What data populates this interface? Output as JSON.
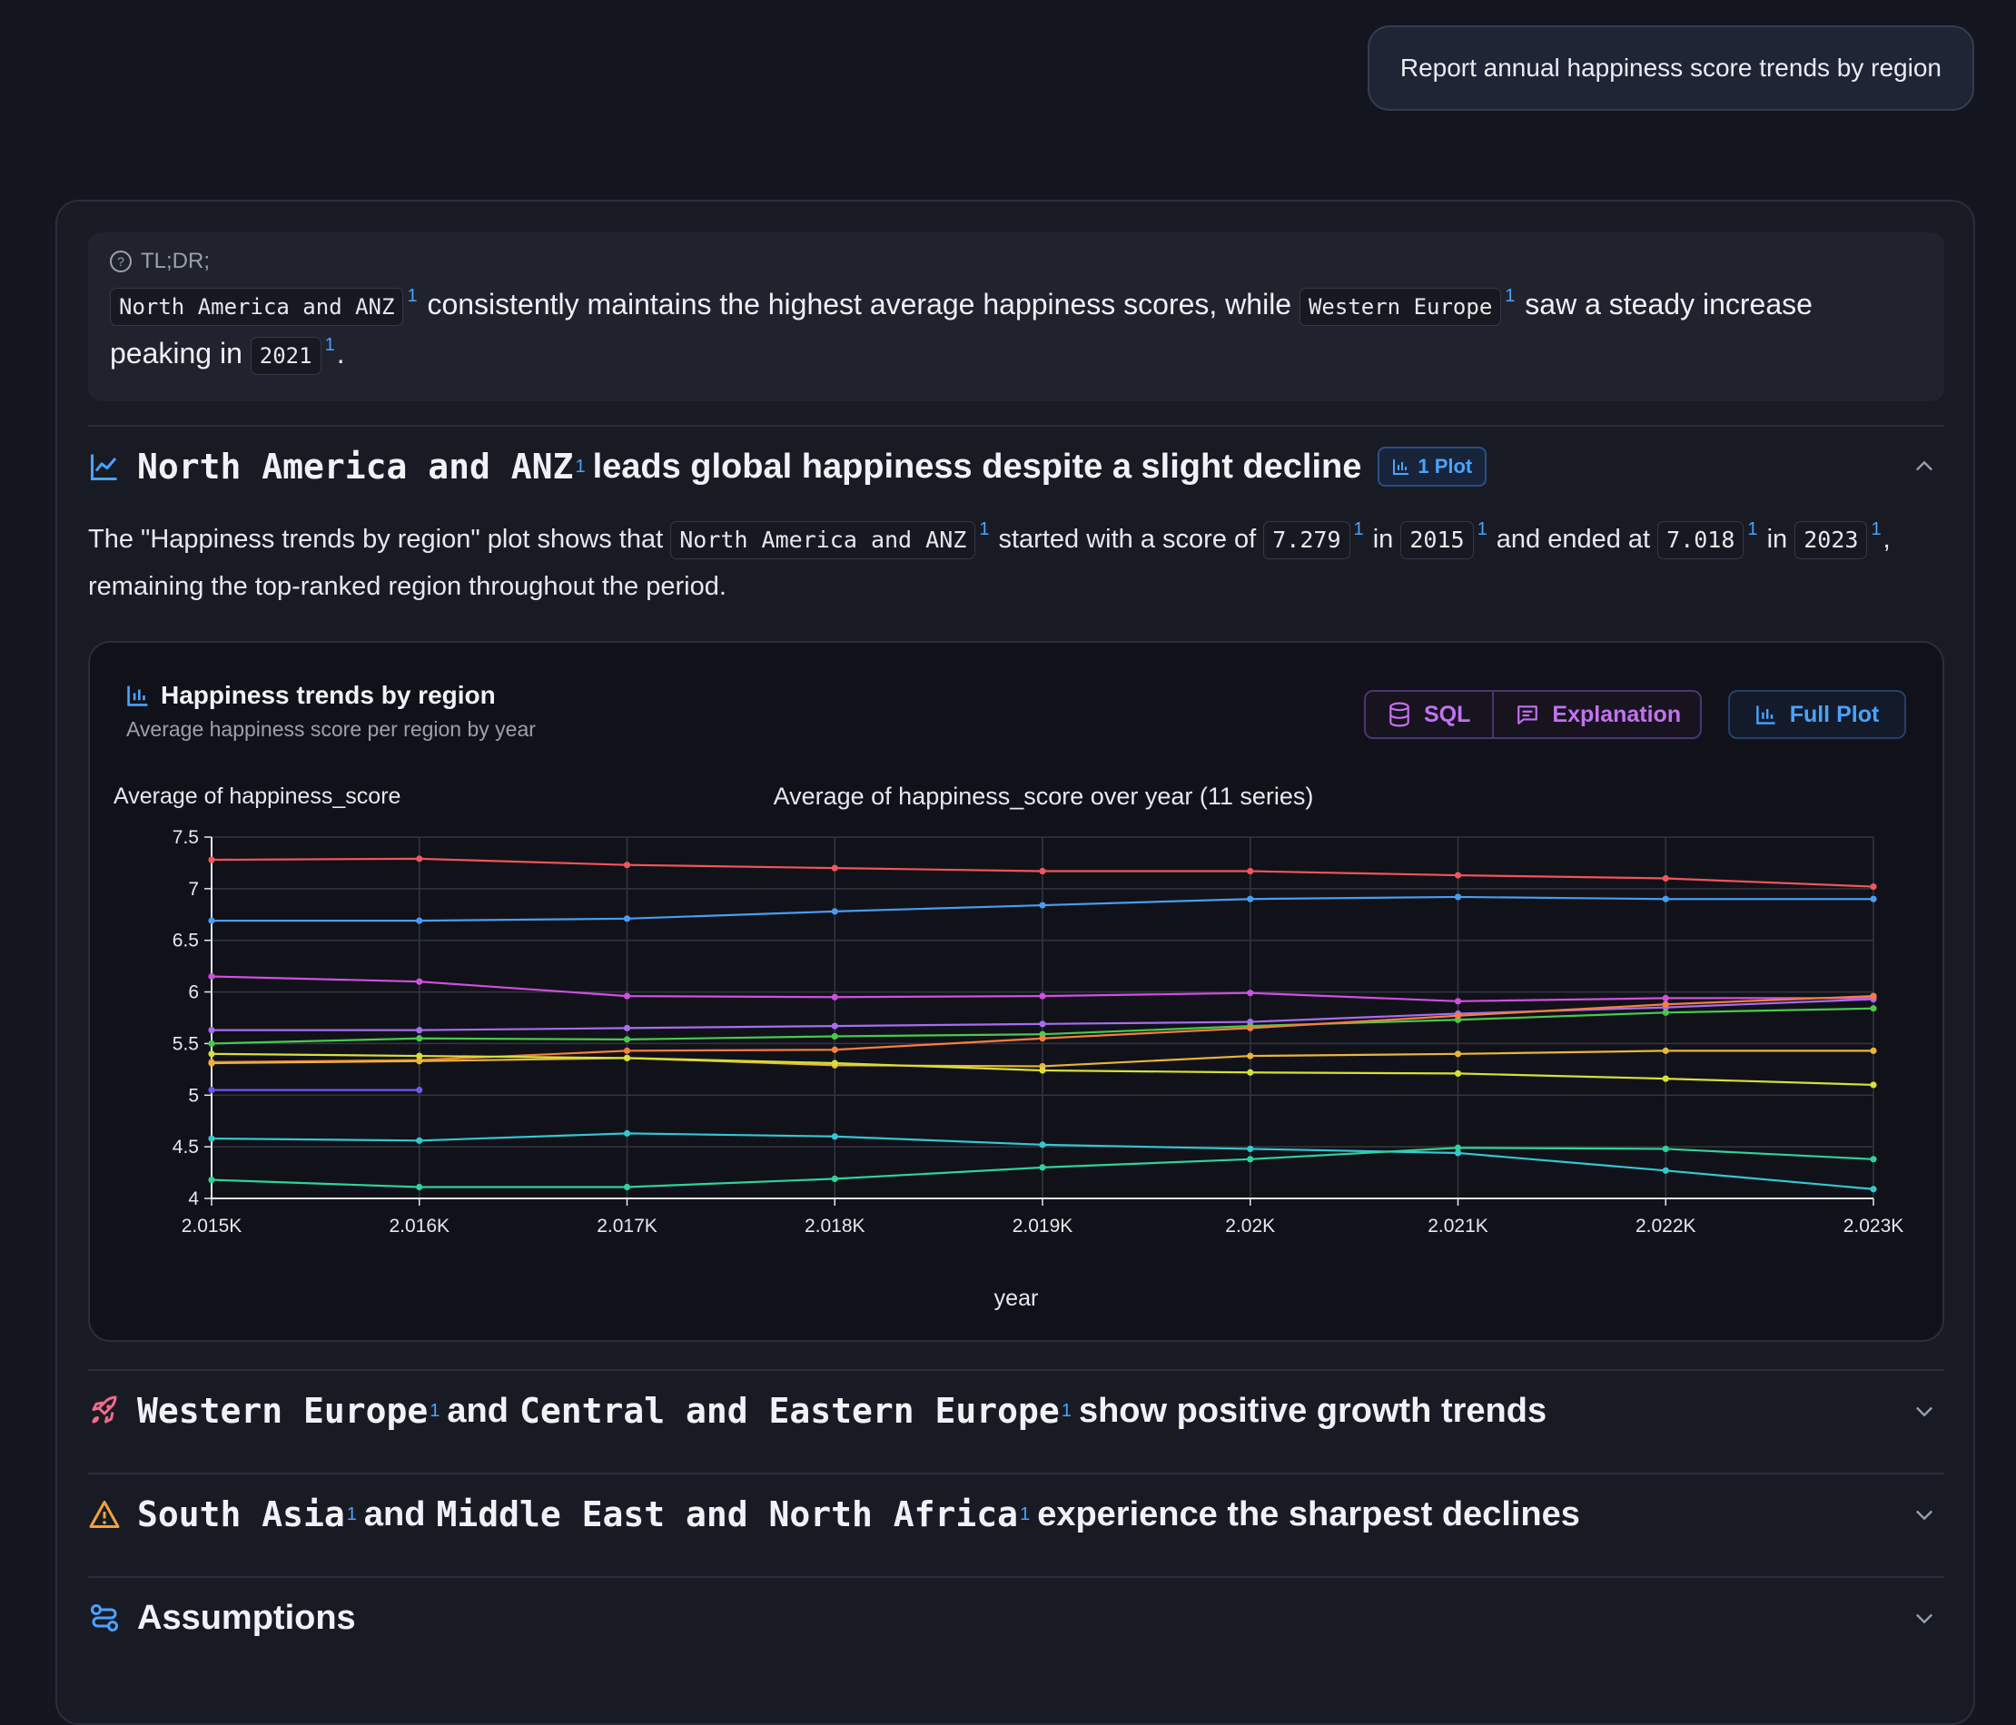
{
  "query": "Report annual happiness score trends by region",
  "tldr": {
    "label": "TL;DR;",
    "chip1": "North America and ANZ",
    "text1": "consistently maintains the highest average happiness scores, while",
    "chip2": "Western Europe",
    "text2": "saw a steady increase",
    "text3": "peaking in",
    "chip3": "2021",
    "text4": ".",
    "ref": "1"
  },
  "section1": {
    "title_chip": "North America and ANZ",
    "title_rest": "leads global happiness despite a slight decline",
    "badge": "1 Plot",
    "para": {
      "t1": "The \"Happiness trends by region\" plot shows that",
      "c1": "North America and ANZ",
      "t2": "started with a score of",
      "c2": "7.279",
      "t3": "in",
      "c3": "2015",
      "t4": "and ended at",
      "c4": "7.018",
      "t5": "in",
      "c5": "2023",
      "t6": ",",
      "t7": "remaining the top-ranked region throughout the period."
    }
  },
  "chart_panel": {
    "title": "Happiness trends by region",
    "subtitle": "Average happiness score per region by year",
    "sql_label": "SQL",
    "explanation_label": "Explanation",
    "full_plot_label": "Full Plot"
  },
  "chart_data": {
    "type": "line",
    "title": "Average of happiness_score over year (11 series)",
    "ylabel": "Average of happiness_score",
    "xlabel": "year",
    "x": [
      2015,
      2016,
      2017,
      2018,
      2019,
      2020,
      2021,
      2022,
      2023
    ],
    "x_tick_labels": [
      "2.015K",
      "2.016K",
      "2.017K",
      "2.018K",
      "2.019K",
      "2.02K",
      "2.021K",
      "2.022K",
      "2.023K"
    ],
    "ylim": [
      4,
      7.5
    ],
    "y_ticks": [
      4,
      4.5,
      5,
      5.5,
      6,
      6.5,
      7,
      7.5
    ],
    "y_tick_labels": [
      "4",
      "4.5",
      "5",
      "5.5",
      "6",
      "6.5",
      "7",
      "7.5"
    ],
    "grid": true,
    "series": [
      {
        "color": "#f2555a",
        "values": [
          7.28,
          7.29,
          7.23,
          7.2,
          7.17,
          7.17,
          7.13,
          7.1,
          7.02
        ]
      },
      {
        "color": "#4a9cf0",
        "values": [
          6.69,
          6.69,
          6.71,
          6.78,
          6.84,
          6.9,
          6.92,
          6.9,
          6.9
        ]
      },
      {
        "color": "#d04fe0",
        "values": [
          6.15,
          6.1,
          5.96,
          5.95,
          5.96,
          5.99,
          5.91,
          5.94,
          5.94
        ]
      },
      {
        "color": "#a56df0",
        "values": [
          5.63,
          5.63,
          5.65,
          5.67,
          5.69,
          5.71,
          5.79,
          5.85,
          5.93
        ]
      },
      {
        "color": "#49c94e",
        "values": [
          5.5,
          5.55,
          5.54,
          5.57,
          5.59,
          5.67,
          5.73,
          5.8,
          5.84
        ]
      },
      {
        "color": "#f57f40",
        "values": [
          5.32,
          5.34,
          5.43,
          5.44,
          5.55,
          5.65,
          5.77,
          5.88,
          5.96
        ]
      },
      {
        "color": "#e8b53c",
        "values": [
          5.31,
          5.33,
          5.36,
          5.29,
          5.28,
          5.38,
          5.4,
          5.43,
          5.43
        ]
      },
      {
        "color": "#d6e038",
        "values": [
          5.4,
          5.38,
          5.36,
          5.31,
          5.24,
          5.22,
          5.21,
          5.16,
          5.1
        ]
      },
      {
        "color": "#6a5af0",
        "values": [
          5.05,
          5.05,
          null,
          null,
          null,
          null,
          null,
          null,
          null
        ]
      },
      {
        "color": "#35c7d0",
        "values": [
          4.58,
          4.56,
          4.63,
          4.6,
          4.52,
          4.48,
          4.44,
          4.27,
          4.09
        ]
      },
      {
        "color": "#2fd39a",
        "values": [
          4.18,
          4.11,
          4.11,
          4.19,
          4.3,
          4.38,
          4.49,
          4.48,
          4.38
        ]
      }
    ]
  },
  "section2": {
    "chip1": "Western Europe",
    "and": "and",
    "chip2": "Central and Eastern Europe",
    "rest": "show positive growth trends"
  },
  "section3": {
    "chip1": "South Asia",
    "and": "and",
    "chip2": "Middle East and North Africa",
    "rest": "experience the sharpest declines"
  },
  "section4": {
    "title": "Assumptions"
  }
}
